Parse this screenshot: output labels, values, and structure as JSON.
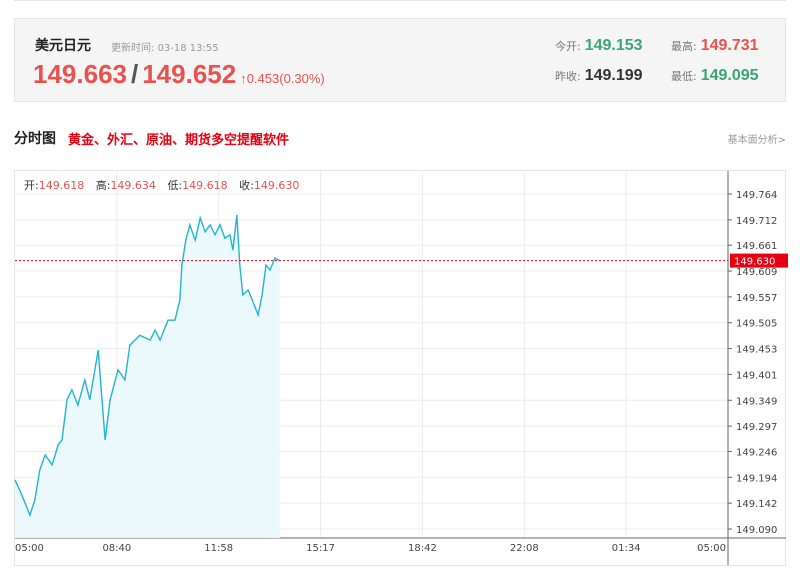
{
  "quote": {
    "name": "美元日元",
    "update_label": "更新时间:",
    "update_time": "03-18 13:55",
    "bid": "149.663",
    "separator": "/",
    "ask": "149.652",
    "change": "0.453(0.30%)",
    "open_label": "今开:",
    "open": "149.153",
    "high_label": "最高:",
    "high": "149.731",
    "prev_close_label": "昨收:",
    "prev_close": "149.199",
    "low_label": "最低:",
    "low": "149.095"
  },
  "section": {
    "title": "分时图",
    "ad": "黄金、外汇、原油、期货多空提醒软件",
    "link": "基本面分析>"
  },
  "ohlc": {
    "open_label": "开:",
    "open": "149.618",
    "high_label": "高:",
    "high": "149.634",
    "low_label": "低:",
    "low": "149.618",
    "close_label": "收:",
    "close": "149.630"
  },
  "colors": {
    "up": "#e8524f",
    "down": "#3aa676",
    "line": "#22b5cf",
    "current": "#e60012"
  },
  "chart_data": {
    "type": "area",
    "x_ticks": [
      "05:00",
      "08:40",
      "11:58",
      "15:17",
      "18:42",
      "22:08",
      "01:34",
      "05:00"
    ],
    "y_ticks": [
      "149.764",
      "149.712",
      "149.661",
      "149.609",
      "149.557",
      "149.505",
      "149.453",
      "149.401",
      "149.349",
      "149.297",
      "149.246",
      "149.194",
      "149.142",
      "149.090"
    ],
    "ylim": [
      149.09,
      149.764
    ],
    "xlim": [
      "05:00",
      "05:00 (+1 day)"
    ],
    "current_price": "149.630",
    "grid": true,
    "points": [
      [
        "05:00",
        149.189
      ],
      [
        "05:14",
        149.158
      ],
      [
        "05:30",
        149.118
      ],
      [
        "05:40",
        149.148
      ],
      [
        "05:50",
        149.209
      ],
      [
        "06:01",
        149.239
      ],
      [
        "06:15",
        149.219
      ],
      [
        "06:27",
        149.259
      ],
      [
        "06:35",
        149.269
      ],
      [
        "06:45",
        149.35
      ],
      [
        "06:55",
        149.37
      ],
      [
        "07:07",
        149.339
      ],
      [
        "07:21",
        149.39
      ],
      [
        "07:31",
        149.35
      ],
      [
        "07:48",
        149.45
      ],
      [
        "08:02",
        149.269
      ],
      [
        "08:12",
        149.35
      ],
      [
        "08:28",
        149.41
      ],
      [
        "08:42",
        149.39
      ],
      [
        "08:52",
        149.46
      ],
      [
        "09:12",
        149.48
      ],
      [
        "09:33",
        149.47
      ],
      [
        "09:43",
        149.49
      ],
      [
        "09:53",
        149.47
      ],
      [
        "10:09",
        149.51
      ],
      [
        "10:23",
        149.51
      ],
      [
        "10:33",
        149.551
      ],
      [
        "10:37",
        149.621
      ],
      [
        "10:45",
        149.671
      ],
      [
        "10:53",
        149.702
      ],
      [
        "11:04",
        149.671
      ],
      [
        "11:14",
        149.716
      ],
      [
        "11:24",
        149.688
      ],
      [
        "11:34",
        149.702
      ],
      [
        "11:44",
        149.682
      ],
      [
        "11:54",
        149.702
      ],
      [
        "12:04",
        149.675
      ],
      [
        "12:14",
        149.682
      ],
      [
        "12:20",
        149.651
      ],
      [
        "12:28",
        149.722
      ],
      [
        "12:34",
        149.621
      ],
      [
        "12:40",
        149.561
      ],
      [
        "12:51",
        149.571
      ],
      [
        "12:59",
        149.551
      ],
      [
        "13:11",
        149.521
      ],
      [
        "13:19",
        149.561
      ],
      [
        "13:27",
        149.621
      ],
      [
        "13:35",
        149.611
      ],
      [
        "13:45",
        149.635
      ],
      [
        "13:55",
        149.63
      ]
    ]
  }
}
